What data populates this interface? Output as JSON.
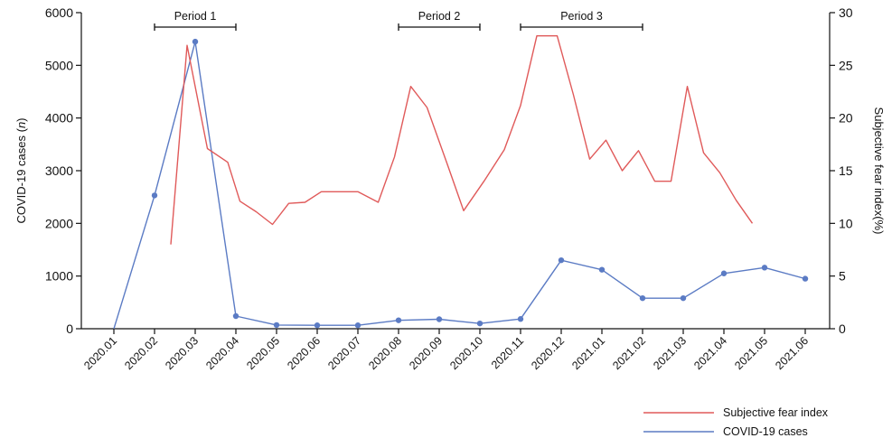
{
  "chart_data": {
    "type": "line",
    "title": "",
    "x": [
      "2020.01",
      "2020.02",
      "2020.03",
      "2020.04",
      "2020.05",
      "2020.06",
      "2020.07",
      "2020.08",
      "2020.09",
      "2020.10",
      "2020.11",
      "2020.12",
      "2021.01",
      "2021.02",
      "2021.03",
      "2021.04",
      "2021.05",
      "2021.06"
    ],
    "y_left": {
      "label_prefix": "COVID-19 cases (",
      "label_italic": "n",
      "label_suffix": ")",
      "range": [
        0,
        6000
      ],
      "ticks": [
        0,
        1000,
        2000,
        3000,
        4000,
        5000,
        6000
      ]
    },
    "y_right": {
      "label": "Subjective fear index(%)",
      "range": [
        0,
        30
      ],
      "ticks": [
        0,
        5,
        10,
        15,
        20,
        25,
        30
      ]
    },
    "periods": [
      {
        "label": "Period 1",
        "start": 1,
        "end": 3
      },
      {
        "label": "Period 2",
        "start": 7,
        "end": 9
      },
      {
        "label": "Period 3",
        "start": 10,
        "end": 13
      }
    ],
    "series": [
      {
        "name": "COVID-19 cases",
        "axis": "left",
        "color": "#5b7bc4",
        "markers": true,
        "points": [
          [
            0,
            0
          ],
          [
            1,
            2530
          ],
          [
            2,
            5450
          ],
          [
            3,
            240
          ],
          [
            4,
            70
          ],
          [
            5,
            65
          ],
          [
            6,
            65
          ],
          [
            7,
            160
          ],
          [
            8,
            180
          ],
          [
            9,
            100
          ],
          [
            10,
            185
          ],
          [
            11,
            1300
          ],
          [
            12,
            1120
          ],
          [
            13,
            580
          ],
          [
            14,
            580
          ],
          [
            15,
            1050
          ],
          [
            16,
            1160
          ],
          [
            17,
            950
          ]
        ]
      },
      {
        "name": "Subjective fear index",
        "axis": "right",
        "color": "#e05a5a",
        "markers": false,
        "points": [
          [
            1.4,
            8
          ],
          [
            1.8,
            26.9
          ],
          [
            2.3,
            17.1
          ],
          [
            2.8,
            15.8
          ],
          [
            3.1,
            12.1
          ],
          [
            3.5,
            11.1
          ],
          [
            3.9,
            9.9
          ],
          [
            4.3,
            11.9
          ],
          [
            4.7,
            12
          ],
          [
            5.1,
            13
          ],
          [
            5.6,
            13
          ],
          [
            6.0,
            13
          ],
          [
            6.5,
            12
          ],
          [
            6.9,
            16.3
          ],
          [
            7.3,
            23
          ],
          [
            7.7,
            21
          ],
          [
            8.2,
            15.6
          ],
          [
            8.6,
            11.2
          ],
          [
            9.1,
            14
          ],
          [
            9.6,
            17
          ],
          [
            10.0,
            21.2
          ],
          [
            10.4,
            27.8
          ],
          [
            10.9,
            27.8
          ],
          [
            11.3,
            22.2
          ],
          [
            11.7,
            16.1
          ],
          [
            12.1,
            17.9
          ],
          [
            12.5,
            15
          ],
          [
            12.9,
            16.9
          ],
          [
            13.3,
            14
          ],
          [
            13.7,
            14
          ],
          [
            14.1,
            23
          ],
          [
            14.5,
            16.7
          ],
          [
            14.9,
            14.8
          ],
          [
            15.3,
            12.2
          ],
          [
            15.7,
            10
          ]
        ]
      }
    ],
    "legend": {
      "placement": "bottom-right"
    }
  }
}
